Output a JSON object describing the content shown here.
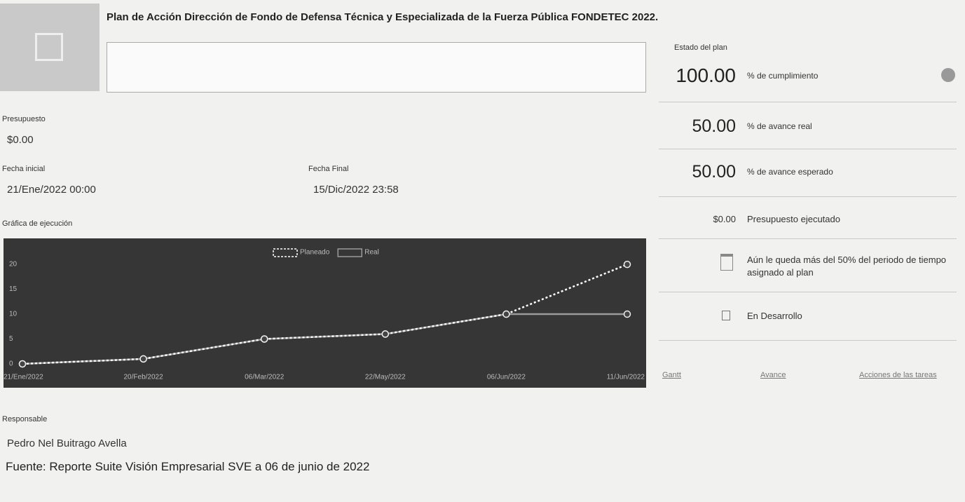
{
  "header": {
    "title": "Plan de Acción Dirección de Fondo de Defensa Técnica y Especializada de la Fuerza Pública FONDETEC 2022."
  },
  "details": {
    "budget_label": "Presupuesto",
    "budget": "$0.00",
    "start_label": "Fecha inicial",
    "start": "21/Ene/2022 00:00",
    "end_label": "Fecha Final",
    "end": "15/Dic/2022 23:58",
    "chart_label": "Gráfica de ejecución",
    "responsible_label": "Responsable",
    "responsible": "Pedro Nel Buitrago Avella"
  },
  "source": "Fuente: Reporte Suite Visión Empresarial SVE a 06 de junio de 2022",
  "status": {
    "title": "Estado del plan",
    "rows": [
      {
        "value": "100.00",
        "label": "% de cumplimiento"
      },
      {
        "value": "50.00",
        "label": "% de avance real"
      },
      {
        "value": "50.00",
        "label": "% de avance esperado"
      },
      {
        "value": "$0.00",
        "label": "Presupuesto ejecutado"
      }
    ],
    "time_note": "Aún le queda más del 50% del periodo de tiempo asignado al plan",
    "state": "En Desarrollo",
    "links": [
      "Gantt",
      "Avance",
      "Acciones de las tareas"
    ]
  },
  "chart": {
    "type": "line",
    "categories": [
      "21/Ene/2022",
      "20/Feb/2022",
      "06/Mar/2022",
      "22/May/2022",
      "06/Jun/2022",
      "11/Jun/2022"
    ],
    "series": [
      {
        "name": "Planeado",
        "color": "#ffffff",
        "values": [
          0,
          1,
          5,
          6,
          10,
          20
        ]
      },
      {
        "name": "Real",
        "color": "#9a9a9a",
        "values": [
          0,
          1,
          5,
          6,
          10,
          10
        ]
      }
    ],
    "ylim": [
      0,
      21
    ],
    "yticks": [
      0,
      5,
      10,
      15,
      20
    ],
    "grid": false
  }
}
